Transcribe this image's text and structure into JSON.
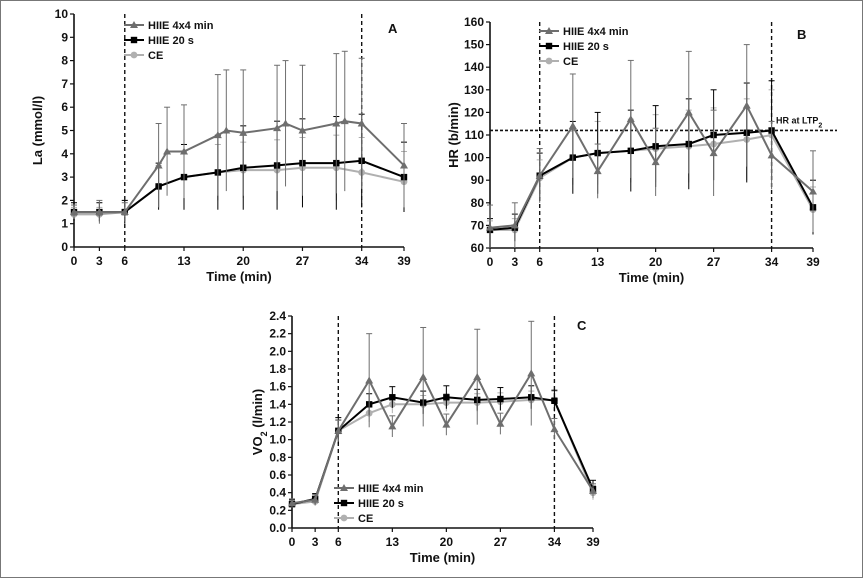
{
  "chart_data": [
    {
      "type": "line",
      "panel": "A",
      "xlabel": "Time (min)",
      "ylabel": "La (mmol/l)",
      "xlim": [
        0,
        39
      ],
      "ylim": [
        0,
        10
      ],
      "x_ticks": [
        0,
        3,
        6,
        13,
        20,
        27,
        34,
        39
      ],
      "y_ticks": [
        0,
        1,
        2,
        3,
        4,
        5,
        6,
        7,
        8,
        9,
        10
      ],
      "vlines": [
        6,
        34
      ],
      "legend_position": "top-left",
      "series": [
        {
          "name": "HIIE 4x4 min",
          "marker": "triangle",
          "color": "#6e6e6e",
          "x": [
            0,
            3,
            6,
            10,
            11,
            13,
            17,
            18,
            20,
            24,
            25,
            27,
            31,
            32,
            34,
            39
          ],
          "y": [
            1.5,
            1.5,
            1.5,
            3.5,
            4.1,
            4.1,
            4.8,
            5.0,
            4.9,
            5.1,
            5.3,
            5.0,
            5.3,
            5.4,
            5.3,
            3.5
          ],
          "err": [
            0.3,
            0.5,
            0.4,
            1.8,
            1.9,
            2.0,
            2.6,
            2.6,
            2.7,
            2.7,
            2.7,
            2.8,
            3.0,
            3.0,
            2.8,
            1.8
          ]
        },
        {
          "name": "HIIE 20 s",
          "marker": "square",
          "color": "#000000",
          "x": [
            0,
            3,
            6,
            10,
            13,
            17,
            20,
            24,
            27,
            31,
            34,
            39
          ],
          "y": [
            1.5,
            1.5,
            1.5,
            2.6,
            3.0,
            3.2,
            3.4,
            3.5,
            3.6,
            3.6,
            3.7,
            3.0
          ],
          "err": [
            0.4,
            0.4,
            0.5,
            1.0,
            1.4,
            1.6,
            1.8,
            1.9,
            1.9,
            2.0,
            2.0,
            1.5
          ]
        },
        {
          "name": "CE",
          "marker": "circle",
          "color": "#b0b0b0",
          "x": [
            0,
            3,
            6,
            10,
            13,
            17,
            20,
            24,
            27,
            31,
            34,
            39
          ],
          "y": [
            1.4,
            1.4,
            1.5,
            2.6,
            3.0,
            3.2,
            3.3,
            3.3,
            3.4,
            3.4,
            3.2,
            2.8
          ],
          "err": [
            0.3,
            0.3,
            0.5,
            0.9,
            1.1,
            1.2,
            1.2,
            1.3,
            1.3,
            1.4,
            1.5,
            1.3
          ]
        }
      ]
    },
    {
      "type": "line",
      "panel": "B",
      "xlabel": "Time (min)",
      "ylabel": "HR (b/min)",
      "xlim": [
        0,
        39
      ],
      "ylim": [
        60,
        160
      ],
      "x_ticks": [
        0,
        3,
        6,
        13,
        20,
        27,
        34,
        39
      ],
      "y_ticks": [
        60,
        70,
        80,
        90,
        100,
        110,
        120,
        130,
        140,
        150,
        160
      ],
      "vlines": [
        6,
        34
      ],
      "hline": {
        "y": 112,
        "label": "HR at LTP",
        "label_sub": "2"
      },
      "legend_position": "top-left",
      "series": [
        {
          "name": "HIIE 4x4 min",
          "marker": "triangle",
          "color": "#6e6e6e",
          "x": [
            0,
            3,
            6,
            10,
            13,
            17,
            20,
            24,
            27,
            31,
            34,
            39
          ],
          "y": [
            69,
            70,
            92,
            114,
            94,
            117,
            98,
            120,
            102,
            123,
            101,
            85
          ],
          "err": [
            10,
            10,
            12,
            23,
            12,
            26,
            15,
            27,
            19,
            27,
            15,
            18
          ]
        },
        {
          "name": "HIIE 20 s",
          "marker": "square",
          "color": "#000000",
          "x": [
            0,
            3,
            6,
            10,
            13,
            17,
            20,
            24,
            27,
            31,
            34,
            39
          ],
          "y": [
            68,
            69,
            92,
            100,
            102,
            103,
            105,
            106,
            110,
            111,
            112,
            78
          ],
          "err": [
            5,
            6,
            10,
            16,
            18,
            18,
            18,
            20,
            20,
            22,
            22,
            12
          ]
        },
        {
          "name": "CE",
          "marker": "circle",
          "color": "#b0b0b0",
          "x": [
            0,
            3,
            6,
            10,
            13,
            17,
            20,
            24,
            27,
            31,
            34,
            39
          ],
          "y": [
            68,
            68,
            91,
            100,
            102,
            103,
            104,
            105,
            106,
            108,
            110,
            77
          ],
          "err": [
            4,
            5,
            8,
            12,
            14,
            14,
            15,
            16,
            16,
            18,
            20,
            10
          ]
        }
      ]
    },
    {
      "type": "line",
      "panel": "C",
      "xlabel": "Time (min)",
      "ylabel": "VO",
      "ylabel_sub": "2",
      "ylabel_tail": " (l/min)",
      "xlim": [
        0,
        39
      ],
      "ylim": [
        0,
        2.4
      ],
      "x_ticks": [
        0,
        3,
        6,
        13,
        20,
        27,
        34,
        39
      ],
      "y_ticks": [
        0,
        0.2,
        0.4,
        0.6,
        0.8,
        1.0,
        1.2,
        1.4,
        1.6,
        1.8,
        2.0,
        2.2,
        2.4
      ],
      "vlines": [
        6,
        34
      ],
      "legend_position": "bottom-left",
      "series": [
        {
          "name": "HIIE 4x4 min",
          "marker": "triangle",
          "color": "#6e6e6e",
          "x": [
            0,
            3,
            6,
            10,
            13,
            17,
            20,
            24,
            27,
            31,
            34,
            39
          ],
          "y": [
            0.28,
            0.32,
            1.1,
            1.67,
            1.15,
            1.71,
            1.17,
            1.71,
            1.18,
            1.75,
            1.12,
            0.42
          ],
          "err": [
            0.05,
            0.06,
            0.12,
            0.53,
            0.12,
            0.56,
            0.12,
            0.54,
            0.12,
            0.59,
            0.12,
            0.08
          ]
        },
        {
          "name": "HIIE 20 s",
          "marker": "square",
          "color": "#000000",
          "x": [
            0,
            3,
            6,
            10,
            13,
            17,
            20,
            24,
            27,
            31,
            34,
            39
          ],
          "y": [
            0.27,
            0.33,
            1.1,
            1.4,
            1.48,
            1.42,
            1.48,
            1.45,
            1.46,
            1.48,
            1.44,
            0.44
          ],
          "err": [
            0.05,
            0.06,
            0.15,
            0.12,
            0.12,
            0.13,
            0.13,
            0.12,
            0.13,
            0.13,
            0.12,
            0.1
          ]
        },
        {
          "name": "CE",
          "marker": "circle",
          "color": "#b0b0b0",
          "x": [
            0,
            3,
            6,
            10,
            13,
            17,
            20,
            24,
            27,
            31,
            34,
            39
          ],
          "y": [
            0.27,
            0.3,
            1.1,
            1.3,
            1.4,
            1.4,
            1.42,
            1.42,
            1.43,
            1.45,
            1.45,
            0.4
          ],
          "err": [
            0.04,
            0.05,
            0.13,
            0.1,
            0.1,
            0.1,
            0.1,
            0.1,
            0.1,
            0.1,
            0.1,
            0.08
          ]
        }
      ]
    }
  ]
}
